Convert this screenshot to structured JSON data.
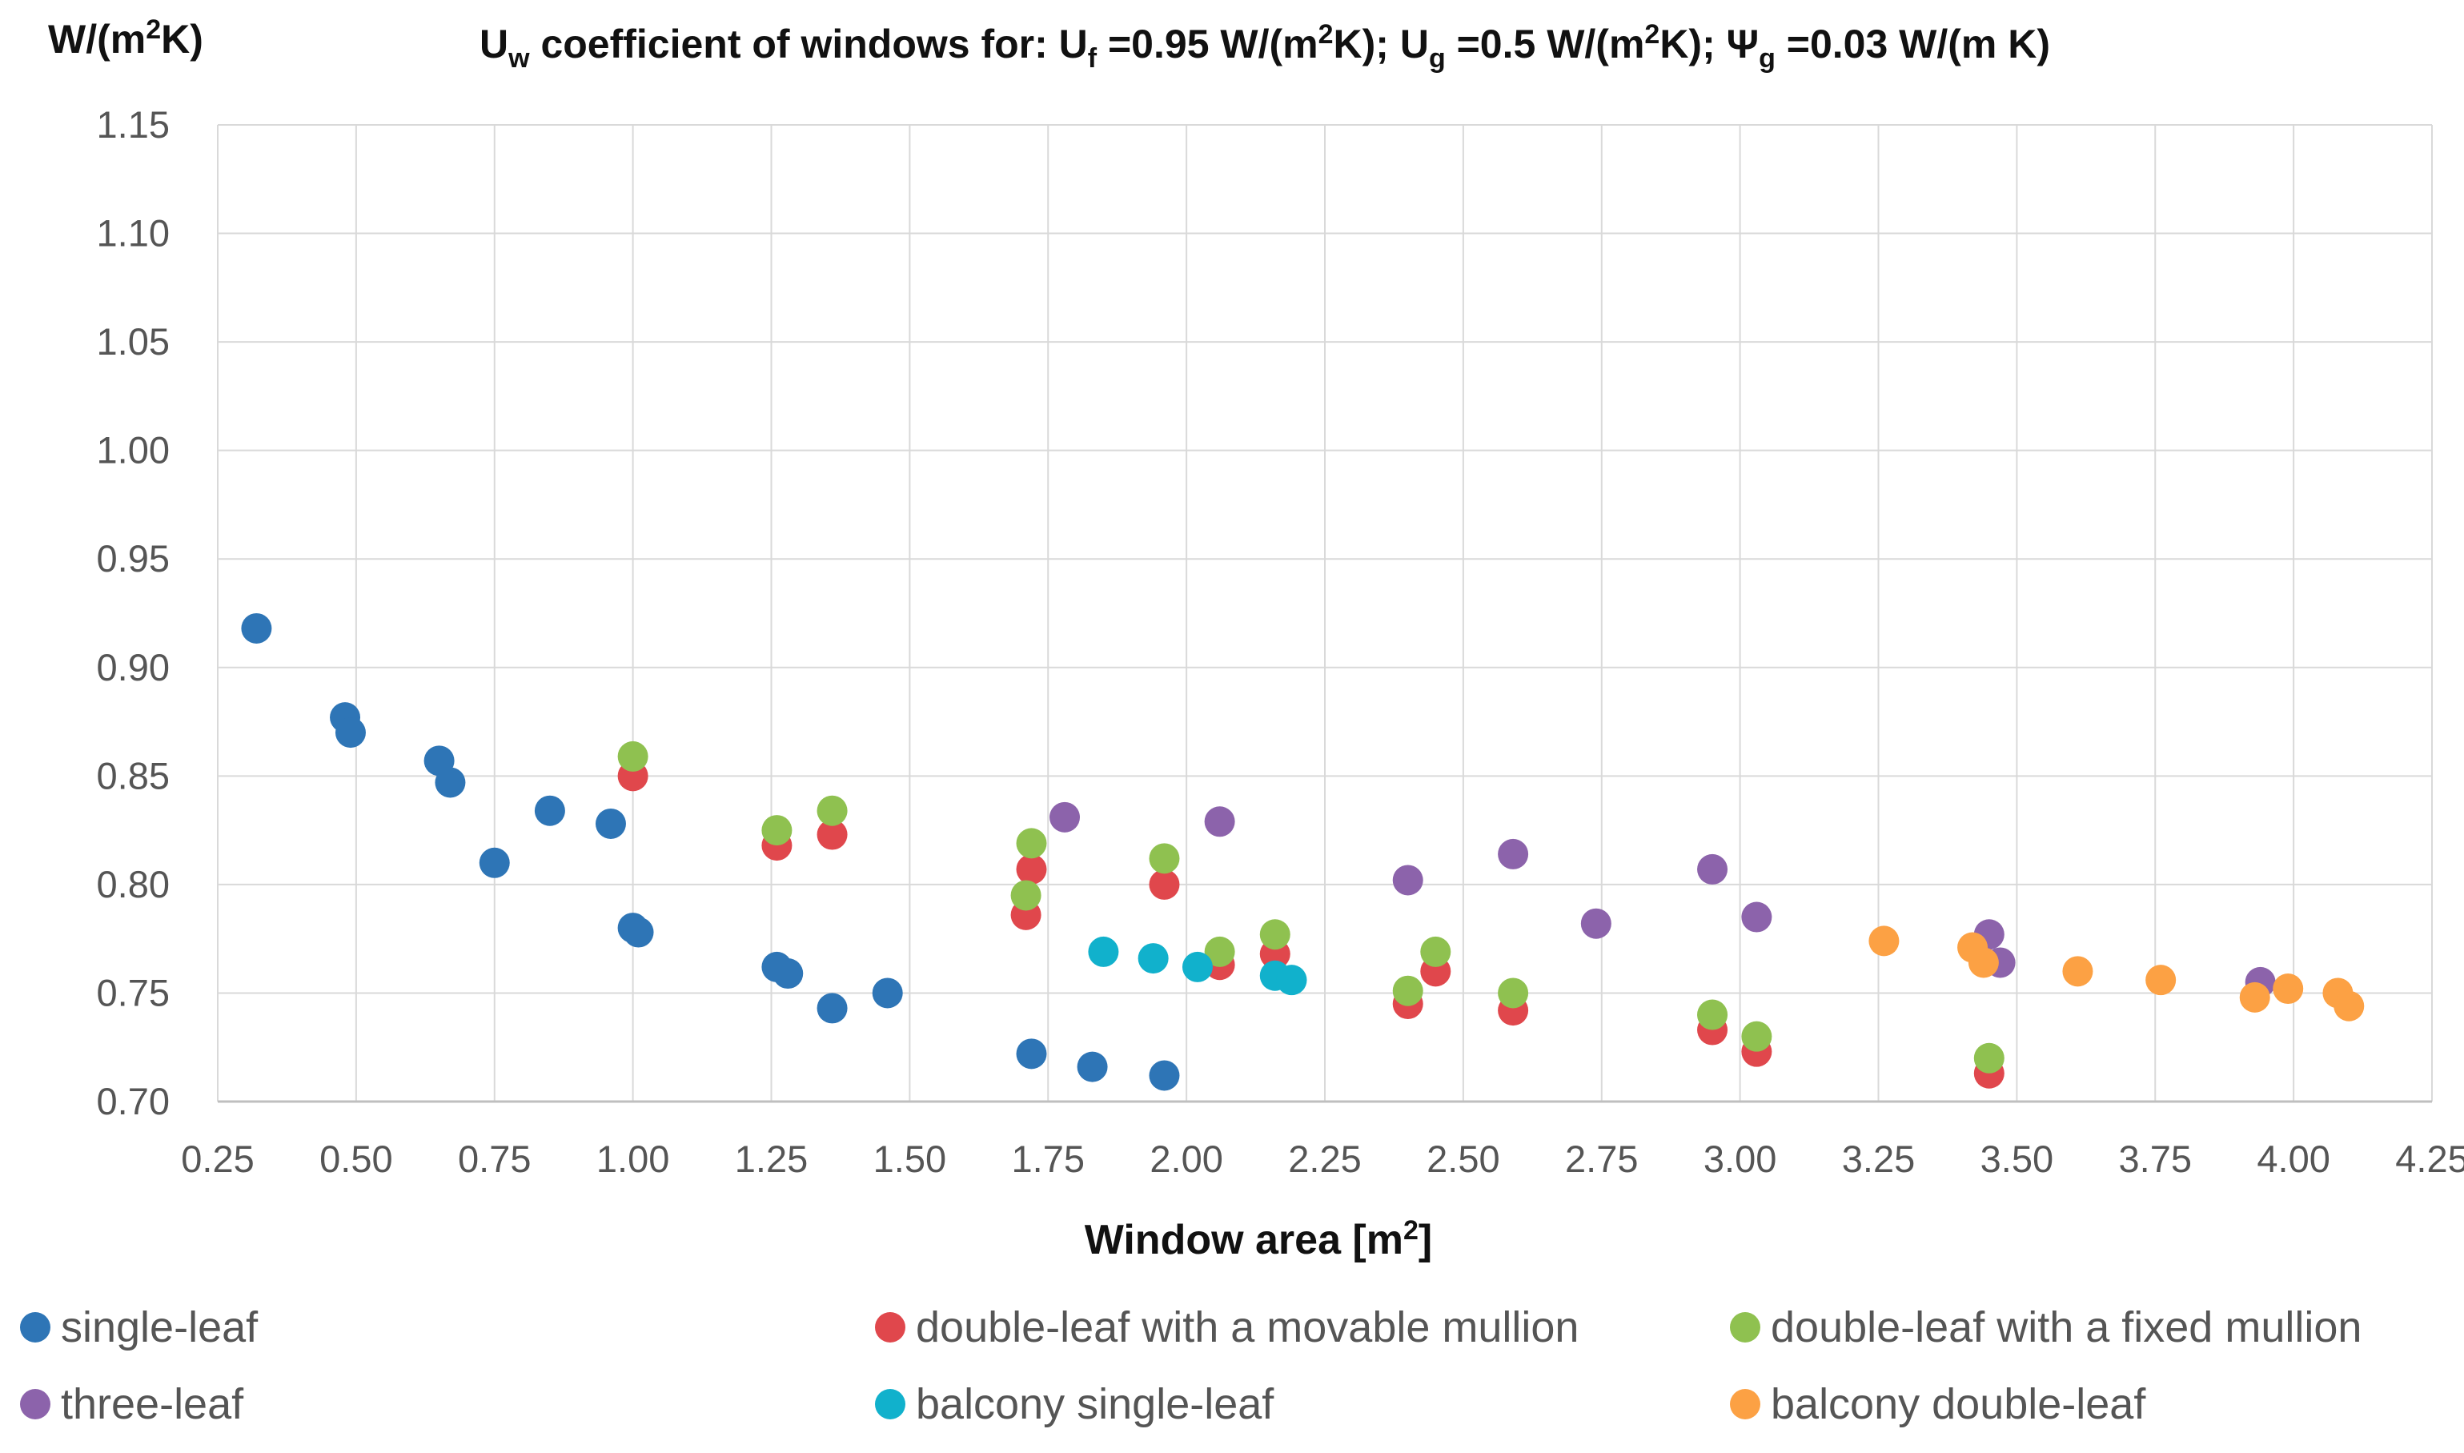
{
  "chart_data": {
    "type": "scatter",
    "title": {
      "text_parts": [
        {
          "t": "U",
          "cls": ""
        },
        {
          "t": "w",
          "cls": "sub",
          "sub": true
        },
        {
          "t": " coefficient of windows for: U",
          "cls": ""
        },
        {
          "t": "f",
          "cls": "sub",
          "sub": true
        },
        {
          "t": " =0.95 W/(m",
          "cls": ""
        },
        {
          "t": "2",
          "cls": "sub",
          "sup": true
        },
        {
          "t": "K); U",
          "cls": ""
        },
        {
          "t": "g",
          "cls": "sub",
          "sub": true
        },
        {
          "t": " =0.5 W/(m",
          "cls": ""
        },
        {
          "t": "2",
          "cls": "sub",
          "sup": true
        },
        {
          "t": "K); Ψ",
          "cls": ""
        },
        {
          "t": "g",
          "cls": "sub",
          "sub": true
        },
        {
          "t": " =0.03 W/(m K)",
          "cls": ""
        }
      ]
    },
    "ylabel": {
      "text_parts": [
        {
          "t": "W/(m",
          "cls": ""
        },
        {
          "t": "2",
          "cls": "sub",
          "sup": true
        },
        {
          "t": "K)",
          "cls": ""
        }
      ]
    },
    "xlabel": {
      "text_parts": [
        {
          "t": "Window area [m",
          "cls": ""
        },
        {
          "t": "2",
          "cls": "sub",
          "sup": true
        },
        {
          "t": "]",
          "cls": ""
        }
      ]
    },
    "xlim": [
      0.25,
      4.25
    ],
    "ylim": [
      0.7,
      1.15
    ],
    "x_ticks": [
      "0.25",
      "0.50",
      "0.75",
      "1.00",
      "1.25",
      "1.50",
      "1.75",
      "2.00",
      "2.25",
      "2.50",
      "2.75",
      "3.00",
      "3.25",
      "3.50",
      "3.75",
      "4.00",
      "4.25"
    ],
    "y_ticks": [
      "0.70",
      "0.75",
      "0.80",
      "0.85",
      "0.90",
      "0.95",
      "1.00",
      "1.05",
      "1.10",
      "1.15"
    ],
    "grid": true,
    "legend_position": "bottom",
    "series": [
      {
        "name": "single-leaf",
        "color": "#2e75b6",
        "points": [
          [
            0.32,
            0.918
          ],
          [
            0.48,
            0.877
          ],
          [
            0.49,
            0.87
          ],
          [
            0.65,
            0.857
          ],
          [
            0.67,
            0.847
          ],
          [
            0.75,
            0.81
          ],
          [
            0.85,
            0.834
          ],
          [
            0.96,
            0.828
          ],
          [
            1.0,
            0.78
          ],
          [
            1.01,
            0.778
          ],
          [
            1.26,
            0.762
          ],
          [
            1.28,
            0.759
          ],
          [
            1.36,
            0.743
          ],
          [
            1.46,
            0.75
          ],
          [
            1.72,
            0.722
          ],
          [
            1.83,
            0.716
          ],
          [
            1.96,
            0.712
          ]
        ]
      },
      {
        "name": "double-leaf with a movable mullion",
        "color": "#e0474c",
        "points": [
          [
            1.0,
            0.85
          ],
          [
            1.26,
            0.818
          ],
          [
            1.36,
            0.823
          ],
          [
            1.72,
            0.807
          ],
          [
            1.71,
            0.786
          ],
          [
            1.96,
            0.8
          ],
          [
            2.06,
            0.763
          ],
          [
            2.16,
            0.768
          ],
          [
            2.4,
            0.745
          ],
          [
            2.45,
            0.76
          ],
          [
            2.59,
            0.742
          ],
          [
            2.95,
            0.733
          ],
          [
            3.03,
            0.723
          ],
          [
            3.45,
            0.713
          ]
        ]
      },
      {
        "name": "double-leaf with a fixed mullion",
        "color": "#8fc150",
        "points": [
          [
            1.0,
            0.859
          ],
          [
            1.26,
            0.825
          ],
          [
            1.36,
            0.834
          ],
          [
            1.72,
            0.819
          ],
          [
            1.71,
            0.795
          ],
          [
            1.96,
            0.812
          ],
          [
            2.06,
            0.769
          ],
          [
            2.16,
            0.777
          ],
          [
            2.4,
            0.751
          ],
          [
            2.45,
            0.769
          ],
          [
            2.59,
            0.75
          ],
          [
            2.95,
            0.74
          ],
          [
            3.03,
            0.73
          ],
          [
            3.45,
            0.72
          ]
        ]
      },
      {
        "name": "three-leaf",
        "color": "#8c63ab",
        "points": [
          [
            1.78,
            0.831
          ],
          [
            2.06,
            0.829
          ],
          [
            2.4,
            0.802
          ],
          [
            2.59,
            0.814
          ],
          [
            2.74,
            0.782
          ],
          [
            2.95,
            0.807
          ],
          [
            3.03,
            0.785
          ],
          [
            3.45,
            0.777
          ],
          [
            3.47,
            0.764
          ],
          [
            3.94,
            0.755
          ]
        ]
      },
      {
        "name": "balcony single-leaf",
        "color": "#11b1cc",
        "points": [
          [
            1.85,
            0.769
          ],
          [
            1.94,
            0.766
          ],
          [
            2.02,
            0.762
          ],
          [
            2.16,
            0.758
          ],
          [
            2.19,
            0.756
          ]
        ]
      },
      {
        "name": "balcony double-leaf",
        "color": "#fca144",
        "points": [
          [
            3.26,
            0.774
          ],
          [
            3.42,
            0.771
          ],
          [
            3.44,
            0.764
          ],
          [
            3.61,
            0.76
          ],
          [
            3.76,
            0.756
          ],
          [
            3.93,
            0.748
          ],
          [
            3.99,
            0.752
          ],
          [
            4.08,
            0.75
          ],
          [
            4.1,
            0.744
          ]
        ]
      }
    ],
    "legend_layout": [
      {
        "series": 0,
        "col": 0,
        "row": 0
      },
      {
        "series": 1,
        "col": 1,
        "row": 0
      },
      {
        "series": 2,
        "col": 2,
        "row": 0
      },
      {
        "series": 3,
        "col": 0,
        "row": 1
      },
      {
        "series": 4,
        "col": 1,
        "row": 1
      },
      {
        "series": 5,
        "col": 2,
        "row": 1
      }
    ]
  }
}
